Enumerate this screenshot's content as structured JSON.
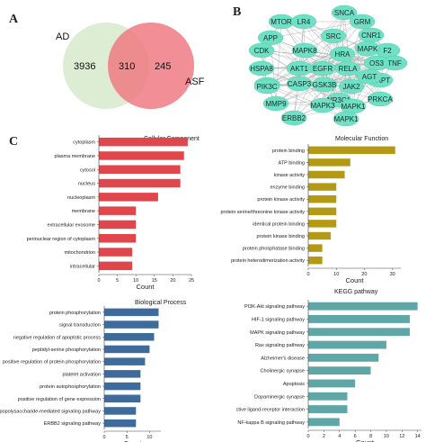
{
  "panels": {
    "a": "A",
    "b": "B",
    "c": "C"
  },
  "venn": {
    "left_label": "AD",
    "right_label": "ASF",
    "left_only": "3936",
    "overlap": "310",
    "right_only": "245",
    "left_color": "#d8ebcf",
    "right_color": "#f07a82"
  },
  "network": {
    "node_color": "#6fe0c4",
    "edge_color": "#9a9a9a",
    "nodes": [
      "SNCA",
      "MTOR",
      "LR4",
      "GRM",
      "CNR1",
      "APP",
      "SRC",
      "CDK",
      "F2",
      "TNF",
      "MAPK",
      "MAPK8",
      "HRA",
      "OS3",
      "MAPT",
      "HSPA8",
      "AKT1",
      "EGFR",
      "RELA",
      "AGT",
      "PIK3C",
      "PIK3C",
      "CASP3",
      "GSK3B",
      "JAK2",
      "NR3C1",
      "PRKCA",
      "MMP9",
      "MAPK3",
      "MAPK1",
      "ERBB2",
      "MAPK1"
    ]
  },
  "chart_data": [
    {
      "type": "bar",
      "orientation": "horizontal",
      "title": "Cellular Component",
      "xlabel": "Count",
      "color": "#e0474c",
      "categories": [
        "cytoplasm",
        "plasma membrane",
        "cytosol",
        "nucleus",
        "nucleoplasm",
        "membrane",
        "extracellular exosome",
        "perinuclear region of cytoplasm",
        "mitochondrion",
        "intracellular"
      ],
      "values": [
        24,
        23,
        22,
        22,
        16,
        10,
        10,
        10,
        9,
        9
      ],
      "xlim": [
        0,
        25
      ],
      "xticks": [
        "0",
        "5",
        "10",
        "15",
        "20",
        "25"
      ]
    },
    {
      "type": "bar",
      "orientation": "horizontal",
      "title": "Molecular Function",
      "xlabel": "Count",
      "color": "#b49a14",
      "categories": [
        "protein binding",
        "ATP binding",
        "kinase activity",
        "enzyme binding",
        "protein kinase activity",
        "protein serine/threonine kinase activity",
        "identical protein binding",
        "protein kinase binding",
        "protein phosphatase binding",
        "protein heterodimerization activity"
      ],
      "values": [
        31,
        15,
        13,
        10,
        10,
        10,
        10,
        8,
        5,
        5
      ],
      "xlim": [
        0,
        33
      ],
      "xticks": [
        "0",
        "10",
        "20",
        "30"
      ]
    },
    {
      "type": "bar",
      "orientation": "horizontal",
      "title": "Biological Process",
      "xlabel": "Count",
      "color": "#3e6a9c",
      "categories": [
        "protein phosphorylation",
        "signal transduction",
        "negative regulation of apoptotic process",
        "peptidyl-serine phosphorylation",
        "positive regulation of protein phosphorylation",
        "platelet activation",
        "protein autophosphorylation",
        "positive regulation of gene expression",
        "lipopolysaccharide-mediated signaling pathway",
        "ERBB2 signaling pathway"
      ],
      "values": [
        12,
        12,
        11,
        10,
        9,
        8,
        8,
        8,
        7,
        7
      ],
      "xlim": [
        0,
        12.5
      ],
      "xticks": [
        "0",
        "5",
        "10"
      ]
    },
    {
      "type": "bar",
      "orientation": "horizontal",
      "title": "KEGG pathway",
      "xlabel": "Count",
      "color": "#5fa7a7",
      "categories": [
        "PI3K-Akt signaling pathway",
        "HIF-1 signaling pathway",
        "MAPK signaling pathway",
        "Ras signaling pathway",
        "Alzheimer's disease",
        "Cholinergic synapse",
        "Apoptosis",
        "Dopaminergic synapse",
        "ctive ligand-receptor interaction",
        "NF-kappa B signaling pathway"
      ],
      "values": [
        14,
        13,
        13,
        10,
        9,
        8,
        6,
        5,
        5,
        4
      ],
      "xlim": [
        0,
        14.5
      ],
      "xticks": [
        "0",
        "2",
        "4",
        "6",
        "8",
        "10",
        "12",
        "14"
      ]
    }
  ]
}
